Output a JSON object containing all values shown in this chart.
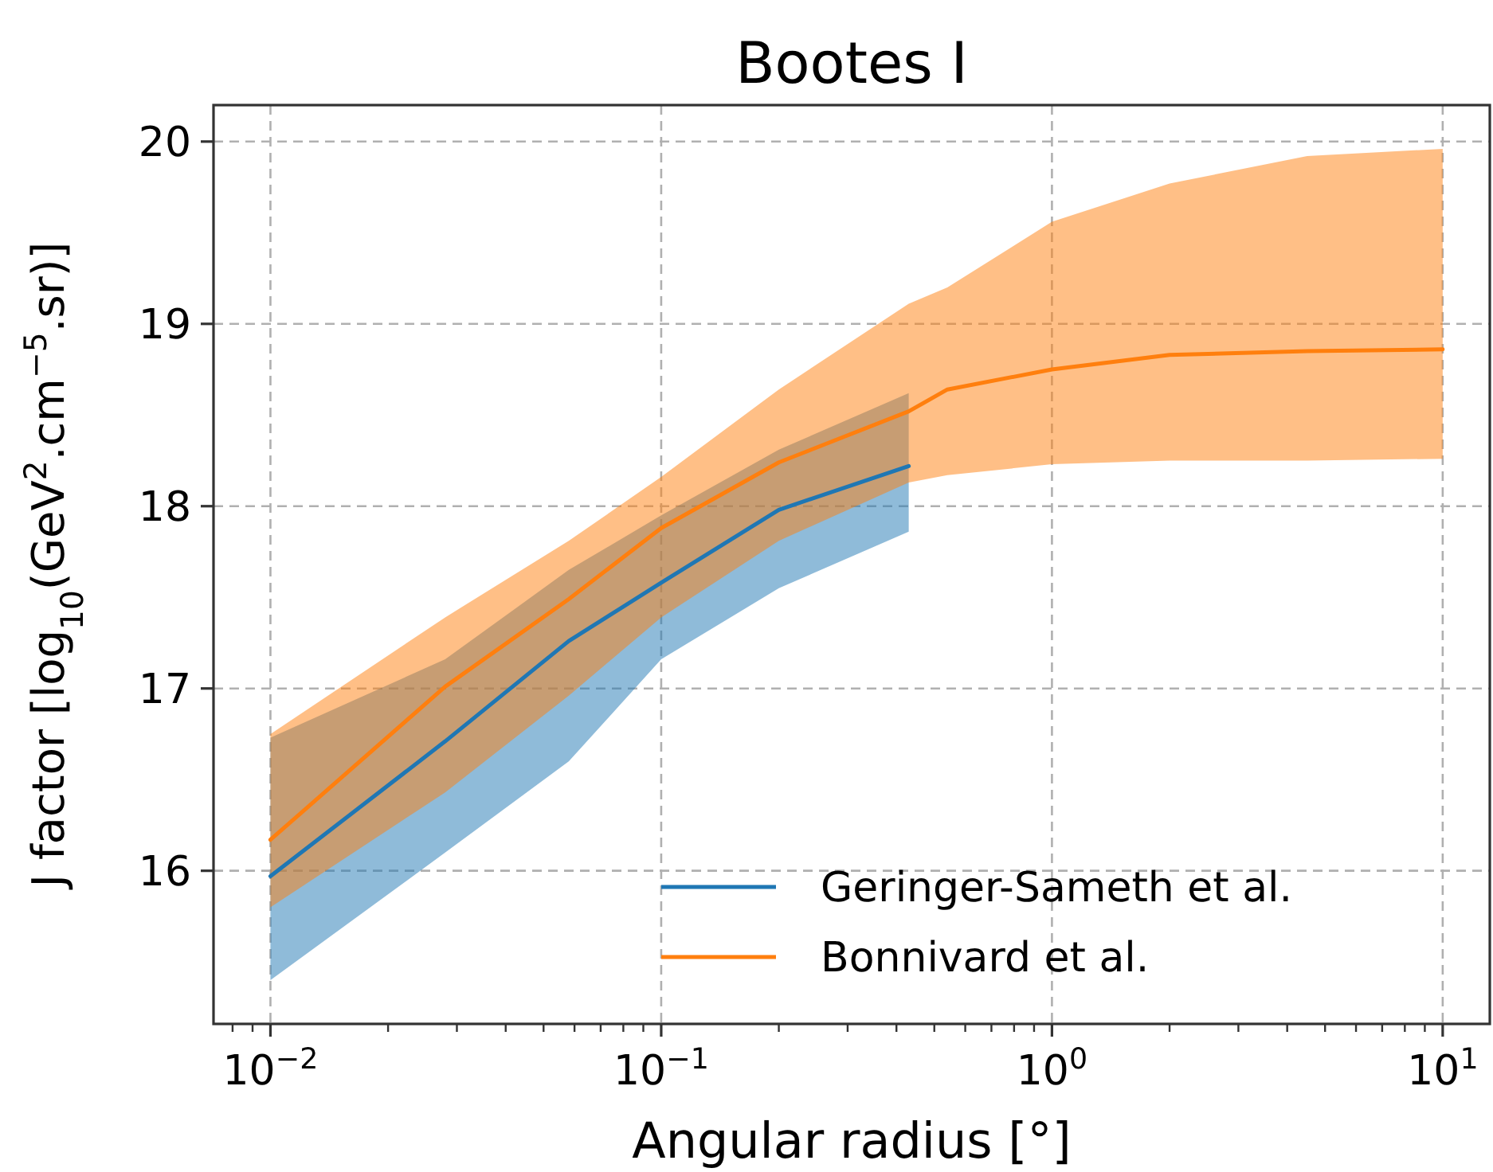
{
  "chart_data": {
    "type": "line",
    "title": "Bootes I",
    "xlabel": "Angular radius [°]",
    "ylabel": "J factor [log$_{10}$(GeV$^{2}$.cm$^{−5}$.sr)]",
    "log": "x",
    "xlim": [
      0.00715,
      13.2
    ],
    "ylim": [
      15.16,
      20.2
    ],
    "xticks": [
      {
        "value": 0.008,
        "label": null
      },
      {
        "value": 0.009,
        "label": null
      },
      {
        "value": 0.01,
        "label": "10$^{−2}$"
      },
      {
        "value": 0.02,
        "label": null
      },
      {
        "value": 0.03,
        "label": null
      },
      {
        "value": 0.04,
        "label": null
      },
      {
        "value": 0.05,
        "label": null
      },
      {
        "value": 0.06,
        "label": null
      },
      {
        "value": 0.07,
        "label": null
      },
      {
        "value": 0.08,
        "label": null
      },
      {
        "value": 0.09,
        "label": null
      },
      {
        "value": 0.1,
        "label": "10$^{−1}$"
      },
      {
        "value": 0.2,
        "label": null
      },
      {
        "value": 0.3,
        "label": null
      },
      {
        "value": 0.4,
        "label": null
      },
      {
        "value": 0.5,
        "label": null
      },
      {
        "value": 0.6,
        "label": null
      },
      {
        "value": 0.7,
        "label": null
      },
      {
        "value": 0.8,
        "label": null
      },
      {
        "value": 0.9,
        "label": null
      },
      {
        "value": 1,
        "label": "10$^{0}$"
      },
      {
        "value": 2,
        "label": null
      },
      {
        "value": 3,
        "label": null
      },
      {
        "value": 4,
        "label": null
      },
      {
        "value": 5,
        "label": null
      },
      {
        "value": 6,
        "label": null
      },
      {
        "value": 7,
        "label": null
      },
      {
        "value": 8,
        "label": null
      },
      {
        "value": 9,
        "label": null
      },
      {
        "value": 10,
        "label": "10$^{1}$"
      }
    ],
    "yticks": [
      16,
      17,
      18,
      19,
      20
    ],
    "grid": true,
    "legend": "bottom right",
    "line_style": "solid",
    "series": [
      {
        "name": "Geringer-Sameth et al.",
        "color": "#1f77b4",
        "x": [
          0.01,
          0.028,
          0.058,
          0.1,
          0.2,
          0.43
        ],
        "values": [
          15.97,
          16.71,
          17.26,
          17.58,
          17.98,
          18.22
        ],
        "lower": [
          15.4,
          16.1,
          16.6,
          17.16,
          17.55,
          17.86
        ],
        "upper": [
          16.73,
          17.16,
          17.65,
          17.95,
          18.31,
          18.62
        ]
      },
      {
        "name": "Bonnivard et al.",
        "color": "#ff7f0e",
        "x": [
          0.01,
          0.028,
          0.058,
          0.1,
          0.2,
          0.43,
          0.54,
          1,
          2,
          4.5,
          10
        ],
        "values": [
          16.17,
          17.01,
          17.49,
          17.88,
          18.24,
          18.52,
          18.64,
          18.75,
          18.83,
          18.85,
          18.86
        ],
        "lower": [
          15.8,
          16.43,
          16.96,
          17.39,
          17.81,
          18.13,
          18.17,
          18.23,
          18.25,
          18.25,
          18.26
        ],
        "upper": [
          16.75,
          17.39,
          17.81,
          18.16,
          18.64,
          19.11,
          19.2,
          19.56,
          19.77,
          19.92,
          19.96
        ]
      }
    ]
  }
}
